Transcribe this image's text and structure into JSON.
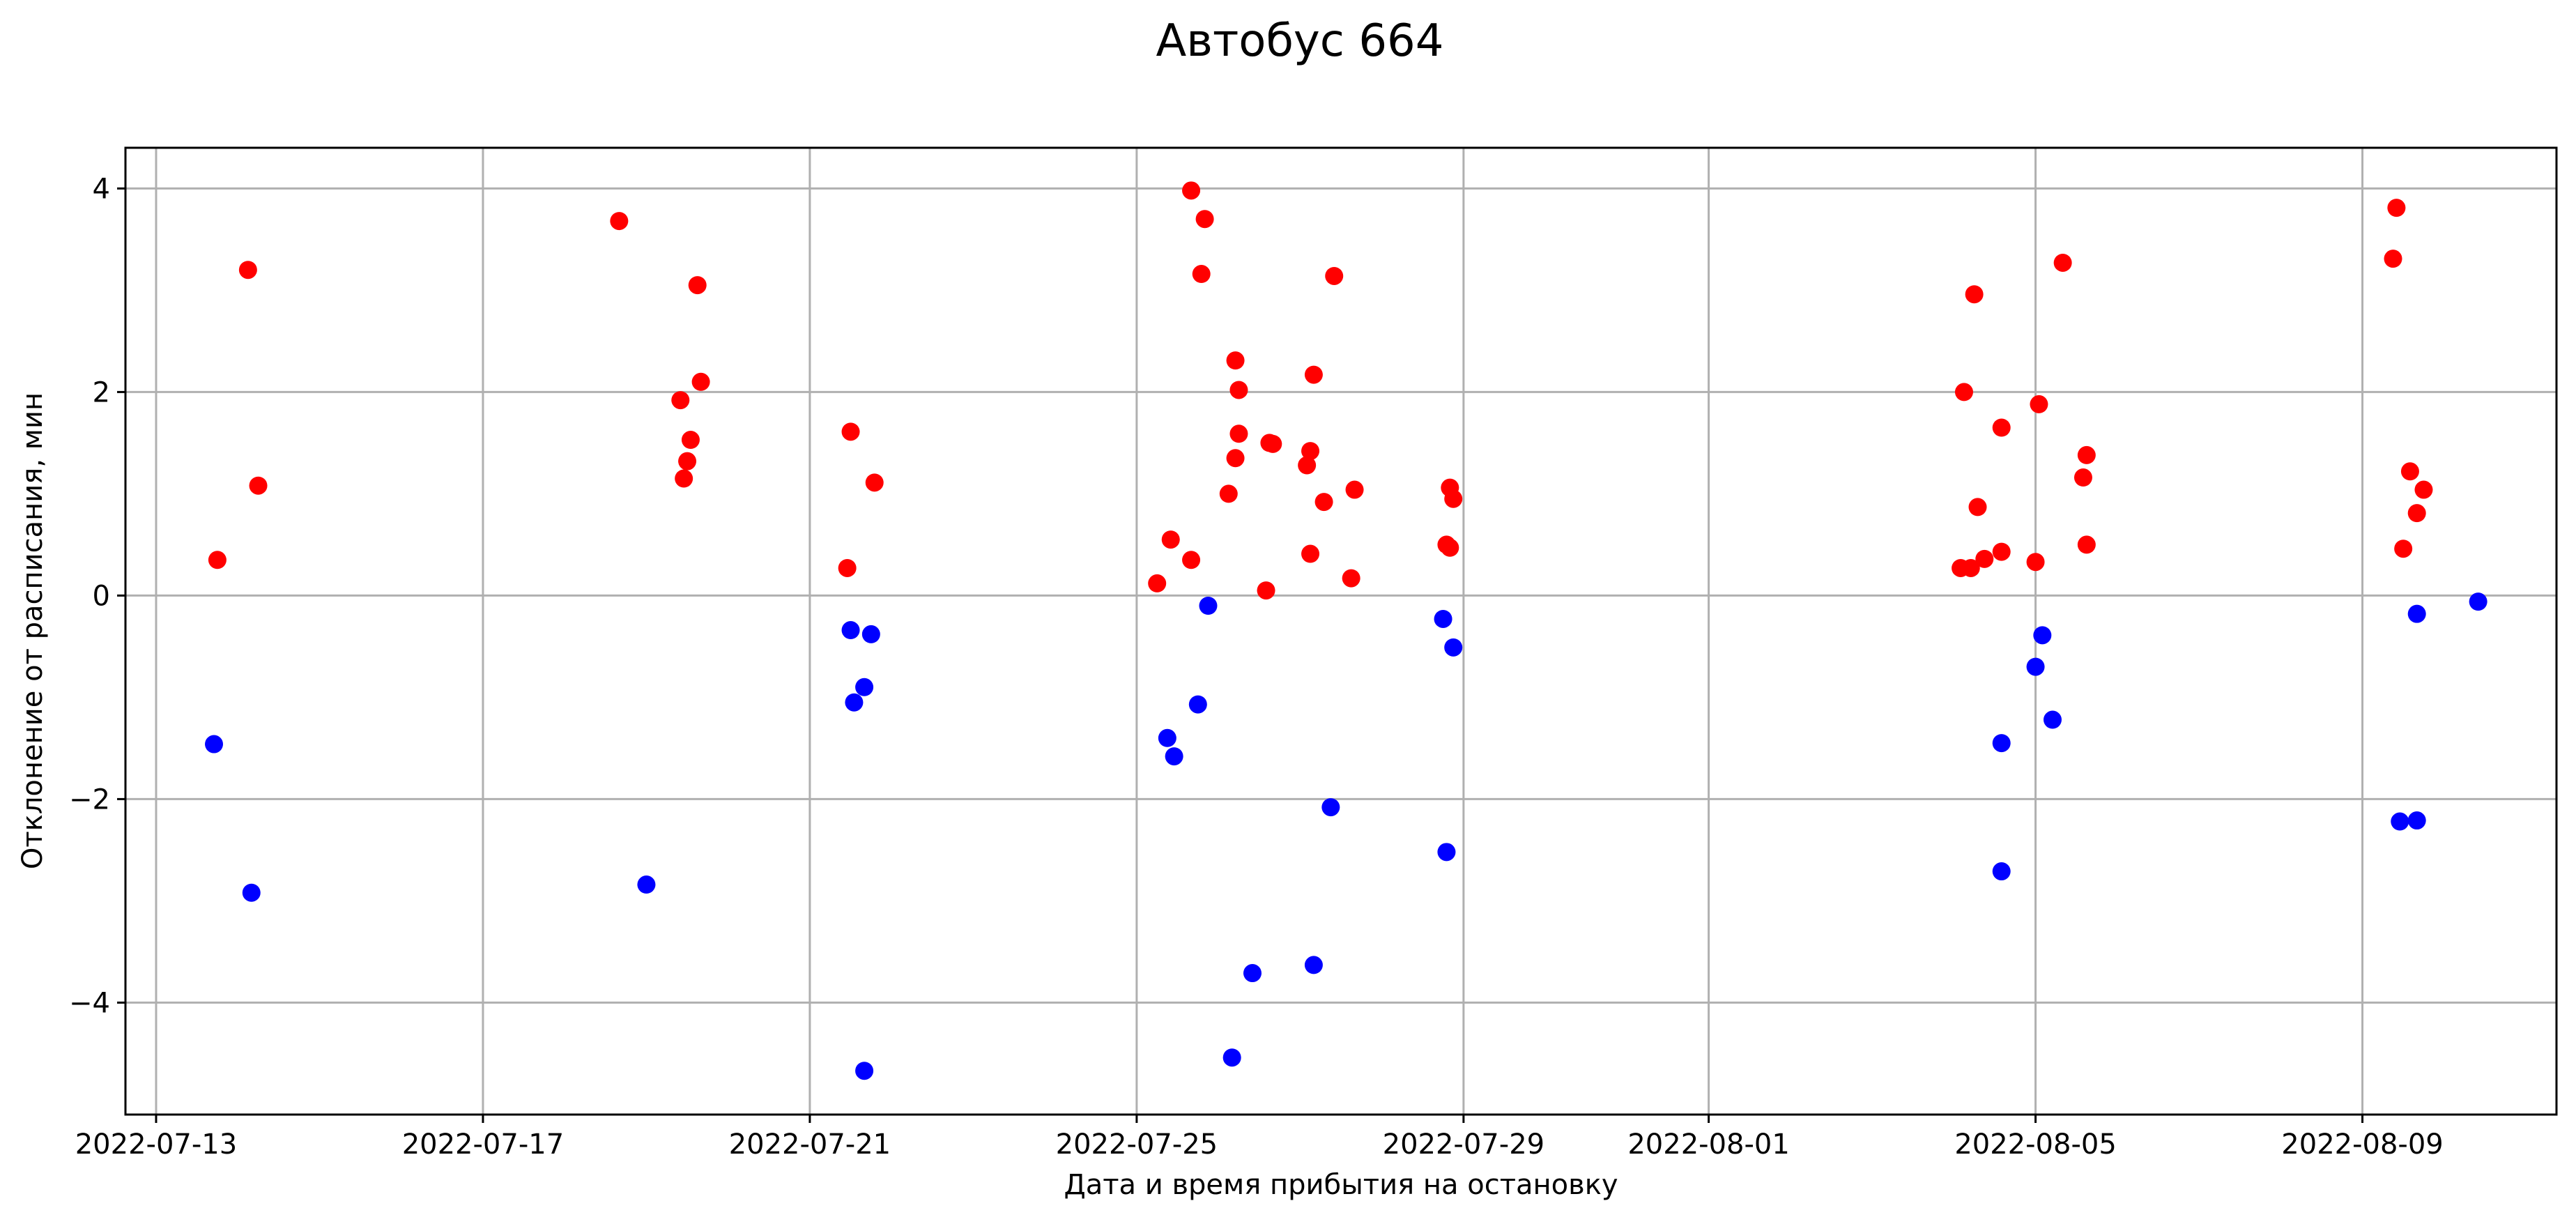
{
  "chart_data": {
    "type": "scatter",
    "title": "Автобус 664",
    "xlabel": "Дата и время прибытия на остановку",
    "ylabel": "Отклонение от расписания, мин",
    "xlim": [
      "2022-07-12 15:00",
      "2022-08-11 09:00"
    ],
    "ylim": [
      -5.1,
      4.4
    ],
    "x_ticks": [
      "2022-07-13",
      "2022-07-17",
      "2022-07-21",
      "2022-07-25",
      "2022-07-29",
      "2022-08-01",
      "2022-08-05",
      "2022-08-09"
    ],
    "y_ticks": [
      4,
      2,
      0,
      -2,
      -4
    ],
    "y_tick_labels": [
      "4",
      "2",
      "0",
      "−2",
      "−4"
    ],
    "grid": true,
    "colors": {
      "positive": "#ff0000",
      "negative": "#0000ff"
    },
    "series": [
      {
        "color": "#ff0000",
        "points": [
          [
            "2022-07-13 18:00",
            0.35
          ],
          [
            "2022-07-14 03:00",
            3.2
          ],
          [
            "2022-07-14 06:00",
            1.08
          ],
          [
            "2022-07-18 16:00",
            3.68
          ],
          [
            "2022-07-19 10:00",
            1.92
          ],
          [
            "2022-07-19 11:00",
            1.15
          ],
          [
            "2022-07-19 12:00",
            1.32
          ],
          [
            "2022-07-19 13:00",
            1.53
          ],
          [
            "2022-07-19 15:00",
            3.05
          ],
          [
            "2022-07-19 16:00",
            2.1
          ],
          [
            "2022-07-21 11:00",
            0.27
          ],
          [
            "2022-07-21 12:00",
            1.61
          ],
          [
            "2022-07-21 19:00",
            1.11
          ],
          [
            "2022-07-25 06:00",
            0.12
          ],
          [
            "2022-07-25 10:00",
            0.55
          ],
          [
            "2022-07-25 16:00",
            0.35
          ],
          [
            "2022-07-25 16:00",
            3.98
          ],
          [
            "2022-07-25 19:00",
            3.16
          ],
          [
            "2022-07-25 20:00",
            3.7
          ],
          [
            "2022-07-26 03:00",
            1.0
          ],
          [
            "2022-07-26 05:00",
            2.31
          ],
          [
            "2022-07-26 05:00",
            1.35
          ],
          [
            "2022-07-26 06:00",
            2.02
          ],
          [
            "2022-07-26 06:00",
            1.59
          ],
          [
            "2022-07-26 14:00",
            0.05
          ],
          [
            "2022-07-26 15:00",
            1.5
          ],
          [
            "2022-07-26 16:00",
            1.49
          ],
          [
            "2022-07-27 02:00",
            1.28
          ],
          [
            "2022-07-27 03:00",
            1.42
          ],
          [
            "2022-07-27 03:00",
            0.41
          ],
          [
            "2022-07-27 04:00",
            2.17
          ],
          [
            "2022-07-27 07:00",
            0.92
          ],
          [
            "2022-07-27 10:00",
            3.14
          ],
          [
            "2022-07-27 15:00",
            0.17
          ],
          [
            "2022-07-27 16:00",
            1.04
          ],
          [
            "2022-07-28 19:00",
            0.5
          ],
          [
            "2022-07-28 20:00",
            1.06
          ],
          [
            "2022-07-28 20:00",
            0.47
          ],
          [
            "2022-07-28 21:00",
            0.95
          ],
          [
            "2022-08-04 02:00",
            0.27
          ],
          [
            "2022-08-04 03:00",
            2.0
          ],
          [
            "2022-08-04 05:00",
            0.27
          ],
          [
            "2022-08-04 06:00",
            2.96
          ],
          [
            "2022-08-04 07:00",
            0.87
          ],
          [
            "2022-08-04 09:00",
            0.36
          ],
          [
            "2022-08-04 14:00",
            1.65
          ],
          [
            "2022-08-04 14:00",
            0.43
          ],
          [
            "2022-08-05 00:00",
            0.33
          ],
          [
            "2022-08-05 01:00",
            1.88
          ],
          [
            "2022-08-05 08:00",
            3.27
          ],
          [
            "2022-08-05 14:00",
            1.16
          ],
          [
            "2022-08-05 15:00",
            1.38
          ],
          [
            "2022-08-05 15:00",
            0.5
          ],
          [
            "2022-08-09 09:00",
            3.31
          ],
          [
            "2022-08-09 10:00",
            3.81
          ],
          [
            "2022-08-09 12:00",
            0.46
          ],
          [
            "2022-08-09 14:00",
            1.22
          ],
          [
            "2022-08-09 16:00",
            0.81
          ],
          [
            "2022-08-09 18:00",
            1.04
          ]
        ]
      },
      {
        "color": "#0000ff",
        "points": [
          [
            "2022-07-13 17:00",
            -1.46
          ],
          [
            "2022-07-14 04:00",
            -2.92
          ],
          [
            "2022-07-19 00:00",
            -2.84
          ],
          [
            "2022-07-21 12:00",
            -0.34
          ],
          [
            "2022-07-21 13:00",
            -1.05
          ],
          [
            "2022-07-21 16:00",
            -4.67
          ],
          [
            "2022-07-21 16:00",
            -0.9
          ],
          [
            "2022-07-21 18:00",
            -0.38
          ],
          [
            "2022-07-25 09:00",
            -1.4
          ],
          [
            "2022-07-25 11:00",
            -1.58
          ],
          [
            "2022-07-25 18:00",
            -1.07
          ],
          [
            "2022-07-25 21:00",
            -0.1
          ],
          [
            "2022-07-26 04:00",
            -4.54
          ],
          [
            "2022-07-26 10:00",
            -3.71
          ],
          [
            "2022-07-27 04:00",
            -3.63
          ],
          [
            "2022-07-27 09:00",
            -2.08
          ],
          [
            "2022-07-28 18:00",
            -0.23
          ],
          [
            "2022-07-28 19:00",
            -2.52
          ],
          [
            "2022-07-28 21:00",
            -0.51
          ],
          [
            "2022-08-04 14:00",
            -1.45
          ],
          [
            "2022-08-04 14:00",
            -2.71
          ],
          [
            "2022-08-05 00:00",
            -0.7
          ],
          [
            "2022-08-05 02:00",
            -0.39
          ],
          [
            "2022-08-05 05:00",
            -1.22
          ],
          [
            "2022-08-09 11:00",
            -2.22
          ],
          [
            "2022-08-09 16:00",
            -2.21
          ],
          [
            "2022-08-09 16:00",
            -0.18
          ],
          [
            "2022-08-10 10:00",
            -0.06
          ]
        ]
      }
    ]
  }
}
